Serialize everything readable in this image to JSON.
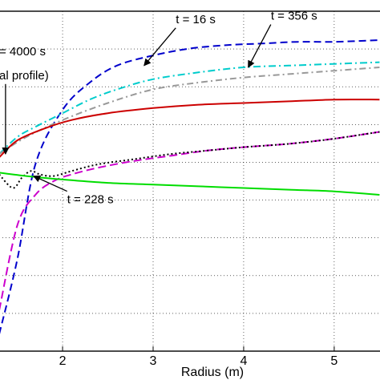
{
  "chart_data": {
    "type": "line",
    "xlabel": "Radius (m)",
    "ylabel": "",
    "xlim": [
      1.3,
      5.55
    ],
    "ylim": [
      0,
      1
    ],
    "x_ticks": [
      2,
      3,
      4,
      5
    ],
    "grid": true,
    "series": [
      {
        "name": "",
        "color": "#0000cc",
        "dash": "9,5",
        "x": [
          1.3,
          1.5,
          1.7,
          2.0,
          2.3,
          2.6,
          3.0,
          3.4,
          3.8,
          4.2,
          4.6,
          5.0,
          5.5
        ],
        "y": [
          0.05,
          0.27,
          0.55,
          0.71,
          0.79,
          0.84,
          0.87,
          0.89,
          0.9,
          0.905,
          0.91,
          0.91,
          0.915
        ]
      },
      {
        "name": "",
        "color": "#00cccc",
        "dash": "9,4,2,4",
        "x": [
          1.3,
          1.5,
          1.7,
          2.0,
          2.3,
          2.6,
          3.0,
          3.5,
          4.0,
          4.5,
          5.0,
          5.5
        ],
        "y": [
          0.58,
          0.63,
          0.66,
          0.7,
          0.74,
          0.77,
          0.8,
          0.82,
          0.835,
          0.84,
          0.845,
          0.85
        ]
      },
      {
        "name": "",
        "color": "#999999",
        "dash": "8,4,2,4",
        "x": [
          1.3,
          1.6,
          2.0,
          2.5,
          3.0,
          3.5,
          4.0,
          4.5,
          5.0,
          5.5
        ],
        "y": [
          0.58,
          0.63,
          0.68,
          0.73,
          0.77,
          0.79,
          0.805,
          0.815,
          0.825,
          0.835
        ]
      },
      {
        "name": "",
        "color": "#cc0000",
        "dash": "",
        "x": [
          1.3,
          1.5,
          1.8,
          2.1,
          2.5,
          3.0,
          3.5,
          4.0,
          4.5,
          5.0,
          5.5
        ],
        "y": [
          0.57,
          0.62,
          0.655,
          0.68,
          0.7,
          0.715,
          0.725,
          0.73,
          0.735,
          0.74,
          0.74
        ]
      },
      {
        "name": "",
        "color": "#cc00cc",
        "dash": "10,5",
        "x": [
          1.3,
          1.5,
          1.7,
          1.9,
          2.1,
          2.4,
          2.8,
          3.2,
          3.6,
          4.0,
          4.5,
          5.0,
          5.5
        ],
        "y": [
          0.12,
          0.37,
          0.46,
          0.5,
          0.52,
          0.54,
          0.56,
          0.575,
          0.59,
          0.6,
          0.61,
          0.625,
          0.645
        ]
      },
      {
        "name": "",
        "color": "#000000",
        "dash": "2,3",
        "x": [
          1.3,
          1.45,
          1.55,
          1.65,
          1.75,
          1.9,
          2.1,
          2.4,
          2.8,
          3.2,
          3.6,
          4.0,
          4.5,
          5.0,
          5.5
        ],
        "y": [
          0.52,
          0.48,
          0.51,
          0.53,
          0.52,
          0.515,
          0.53,
          0.55,
          0.565,
          0.58,
          0.59,
          0.6,
          0.61,
          0.625,
          0.645
        ]
      },
      {
        "name": "",
        "color": "#00dd00",
        "dash": "",
        "x": [
          1.3,
          1.6,
          2.0,
          2.5,
          3.0,
          3.5,
          4.0,
          4.5,
          5.0,
          5.5
        ],
        "y": [
          0.525,
          0.515,
          0.505,
          0.495,
          0.49,
          0.485,
          0.48,
          0.475,
          0.47,
          0.46
        ]
      }
    ],
    "annotations": [
      {
        "text": "t = 16 s",
        "x": 3.25,
        "y": 0.965,
        "arrow_to": [
          2.9,
          0.84
        ]
      },
      {
        "text": "t = 356 s",
        "x": 4.3,
        "y": 0.975,
        "arrow_to": [
          4.05,
          0.835
        ]
      },
      {
        "text": "= 4000 s",
        "x": 1.3,
        "y": 0.87,
        "arrow_to": null
      },
      {
        "text": "al profile)",
        "x": 1.3,
        "y": 0.8,
        "arrow_to": [
          1.37,
          0.58
        ]
      },
      {
        "text": "t = 228 s",
        "x": 2.05,
        "y": 0.435,
        "arrow_to": [
          1.68,
          0.515
        ]
      }
    ]
  }
}
